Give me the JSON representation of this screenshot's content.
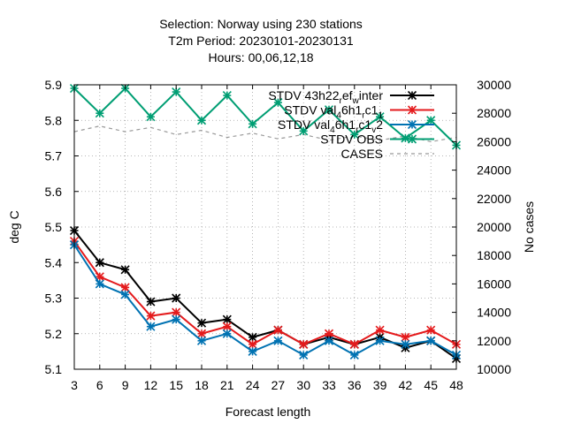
{
  "chart_data": {
    "type": "line",
    "title_lines": [
      "Selection: Norway using   230 stations",
      "T2m   Period: 20230101-20230131",
      "Hours: 00,06,12,18"
    ],
    "xlabel": "Forecast length",
    "ylabel": "deg C",
    "y2label": "No cases",
    "x": [
      3,
      6,
      9,
      12,
      15,
      18,
      21,
      24,
      27,
      30,
      33,
      36,
      39,
      42,
      45,
      48
    ],
    "xlim": [
      3,
      48
    ],
    "ylim": [
      5.1,
      5.9
    ],
    "y2lim": [
      10000,
      30000
    ],
    "yticks": [
      "5.1",
      "5.2",
      "5.3",
      "5.4",
      "5.5",
      "5.6",
      "5.7",
      "5.8",
      "5.9"
    ],
    "y2ticks": [
      "10000",
      "12000",
      "14000",
      "16000",
      "18000",
      "20000",
      "22000",
      "24000",
      "26000",
      "28000",
      "30000"
    ],
    "grid": true,
    "legend_position": "top-right",
    "series": [
      {
        "legend": [
          {
            "t": "STDV 43h22"
          },
          {
            "t": "r",
            "sub": true
          },
          {
            "t": "ef"
          },
          {
            "t": "w",
            "sub": true
          },
          {
            "t": "inter"
          }
        ],
        "color": "#000000",
        "marker": "star",
        "axis": "y",
        "values": [
          5.49,
          5.4,
          5.38,
          5.29,
          5.3,
          5.23,
          5.24,
          5.19,
          5.21,
          5.17,
          5.19,
          5.17,
          5.19,
          5.16,
          5.18,
          5.13
        ]
      },
      {
        "legend": [
          {
            "t": "STDV val"
          },
          {
            "t": "4",
            "sub": true
          },
          {
            "t": "6h1"
          },
          {
            "t": "r",
            "sub": true
          },
          {
            "t": "c1"
          },
          {
            "t": "1",
            "sub": true
          }
        ],
        "color": "#e41a1c",
        "marker": "star",
        "axis": "y",
        "values": [
          5.46,
          5.36,
          5.33,
          5.25,
          5.26,
          5.2,
          5.22,
          5.17,
          5.21,
          5.17,
          5.2,
          5.17,
          5.21,
          5.19,
          5.21,
          5.17
        ]
      },
      {
        "legend": [
          {
            "t": "STDV val"
          },
          {
            "t": "4",
            "sub": true
          },
          {
            "t": "6h1"
          },
          {
            "t": "r",
            "sub": true
          },
          {
            "t": "c1"
          },
          {
            "t": "v",
            "sub": true
          },
          {
            "t": "2"
          }
        ],
        "color": "#0072b2",
        "marker": "star",
        "axis": "y",
        "values": [
          5.45,
          5.34,
          5.31,
          5.22,
          5.24,
          5.18,
          5.2,
          5.15,
          5.18,
          5.14,
          5.18,
          5.14,
          5.18,
          5.17,
          5.18,
          5.14
        ]
      },
      {
        "legend": [
          {
            "t": "STDV OBS"
          }
        ],
        "color": "#009e73",
        "marker": "star",
        "axis": "y",
        "values": [
          5.89,
          5.82,
          5.89,
          5.81,
          5.88,
          5.8,
          5.87,
          5.79,
          5.85,
          5.77,
          5.83,
          5.76,
          5.81,
          5.75,
          5.8,
          5.73
        ]
      },
      {
        "legend": [
          {
            "t": "CASES"
          }
        ],
        "color": "#999999",
        "marker": "none",
        "dashed": true,
        "axis": "y2",
        "values": [
          26700,
          27100,
          26700,
          27000,
          26500,
          26800,
          26300,
          26600,
          26200,
          26500,
          26100,
          26400,
          26100,
          26400,
          26000,
          26300
        ]
      }
    ]
  }
}
